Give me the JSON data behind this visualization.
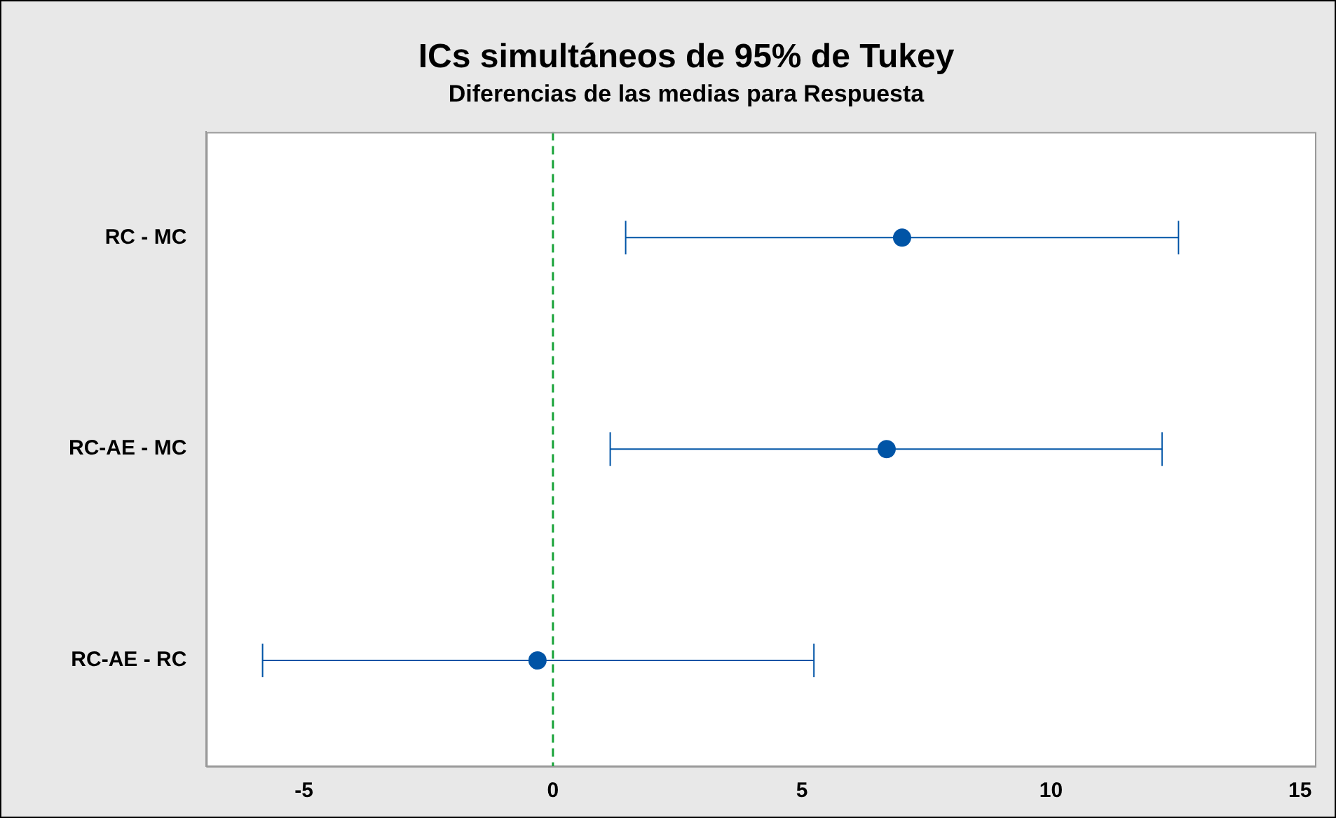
{
  "chart_data": {
    "type": "scatter",
    "orientation": "horizontal",
    "title": "ICs simultáneos de 95% de Tukey",
    "subtitle": "Diferencias de las medias para Respuesta",
    "categories": [
      "RC - MC",
      "RC-AE - MC",
      "RC-AE - RC"
    ],
    "series": [
      {
        "color": "#0054a6",
        "values": [
          7.01,
          6.7,
          -0.31
        ],
        "errors": [
          [
            1.46,
            12.56
          ],
          [
            1.15,
            12.23
          ],
          [
            -5.83,
            5.24
          ]
        ]
      }
    ],
    "xlim": [
      -6.96,
      15.3
    ],
    "xticks": [
      -5,
      0,
      5,
      10,
      15
    ],
    "ref_lines": [
      {
        "axis": "x",
        "value": 0,
        "color": "#1aa33a",
        "line_style": "dashed"
      }
    ],
    "marker": "circle",
    "grid": false,
    "legend": false
  }
}
